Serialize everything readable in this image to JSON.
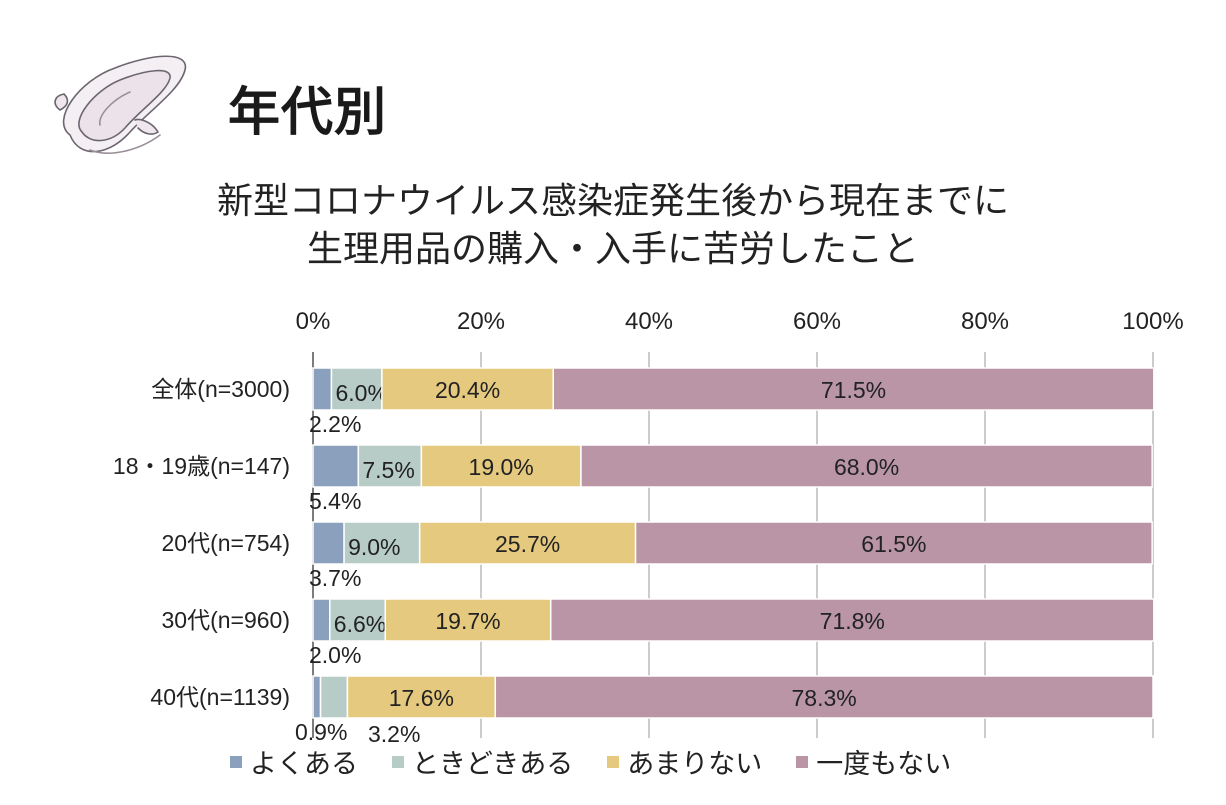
{
  "header": {
    "title": "年代別",
    "subtitle_line1": "新型コロナウイルス感染症発生後から現在までに",
    "subtitle_line2": "生理用品の購入・入手に苦労したこと"
  },
  "icons": {
    "logo": "sanitary-pad-icon"
  },
  "chart_data": {
    "type": "bar",
    "orientation": "horizontal",
    "stacked": true,
    "percent_stacked": true,
    "title": "",
    "xlabel": "",
    "ylabel": "",
    "xlim": [
      0,
      100
    ],
    "x_ticks": [
      "0%",
      "20%",
      "40%",
      "60%",
      "80%",
      "100%"
    ],
    "x_tick_values": [
      0,
      20,
      40,
      60,
      80,
      100
    ],
    "grid": true,
    "legend_position": "bottom",
    "categories": [
      "全体(n=3000)",
      "18・19歳(n=147)",
      "20代(n=754)",
      "30代(n=960)",
      "40代(n=1139)"
    ],
    "series": [
      {
        "name": "よくある",
        "color": "#8aa0bd",
        "values": [
          2.2,
          5.4,
          3.7,
          2.0,
          0.9
        ]
      },
      {
        "name": "ときどきある",
        "color": "#b7cbc7",
        "values": [
          6.0,
          7.5,
          9.0,
          6.6,
          3.2
        ]
      },
      {
        "name": "あまりない",
        "color": "#e5c97f",
        "values": [
          20.4,
          19.0,
          25.7,
          19.7,
          17.6
        ]
      },
      {
        "name": "一度もない",
        "color": "#b995a6",
        "values": [
          71.5,
          68.0,
          61.5,
          71.8,
          78.3
        ]
      }
    ],
    "data_labels": [
      [
        "2.2%",
        "6.0%",
        "20.4%",
        "71.5%"
      ],
      [
        "5.4%",
        "7.5%",
        "19.0%",
        "68.0%"
      ],
      [
        "3.7%",
        "9.0%",
        "25.7%",
        "61.5%"
      ],
      [
        "2.0%",
        "6.6%",
        "19.7%",
        "71.8%"
      ],
      [
        "0.9%",
        "3.2%",
        "17.6%",
        "78.3%"
      ]
    ]
  }
}
